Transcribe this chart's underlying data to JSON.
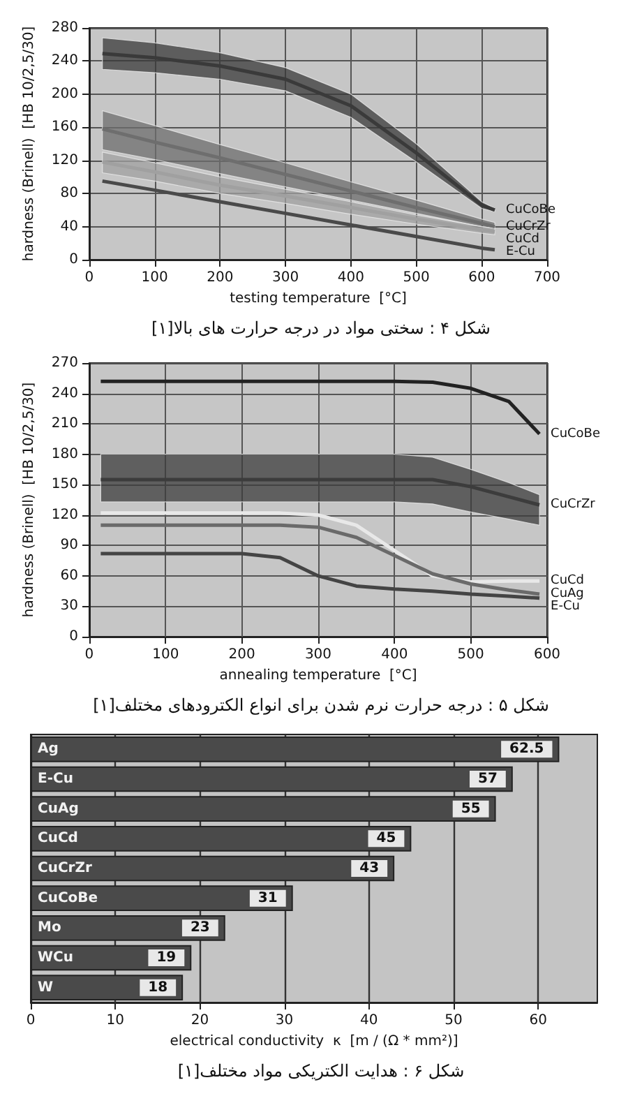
{
  "chart_data": [
    {
      "type": "line",
      "title": "شکل ۴ : سختی مواد در درجه حرارت های بالا[۱]",
      "xlabel": "testing temperature  [°C]",
      "ylabel": "hardness (Brinell)  [HB 10/2,5/30]",
      "xlim": [
        0,
        700
      ],
      "xticks": [
        0,
        100,
        200,
        300,
        400,
        500,
        600,
        700
      ],
      "ylim": [
        0,
        280
      ],
      "yticks": [
        0,
        40,
        80,
        120,
        160,
        200,
        240,
        280
      ],
      "grid": true,
      "x": [
        20,
        100,
        200,
        300,
        400,
        500,
        600,
        620
      ],
      "series": [
        {
          "name": "CuCoBe",
          "color": "#3a3a3a",
          "values": [
            249,
            244,
            234,
            218,
            186,
            129,
            66,
            60
          ],
          "lower": [
            230,
            226,
            218,
            204,
            172,
            118,
            62,
            58
          ],
          "upper": [
            268,
            262,
            250,
            232,
            200,
            140,
            70,
            62
          ]
        },
        {
          "name": "CuCrZr",
          "color": "#6e6e6e",
          "values": [
            158,
            142,
            123,
            103,
            83,
            63,
            44,
            40
          ],
          "lower": [
            133,
            121,
            104,
            88,
            72,
            56,
            40,
            38
          ],
          "upper": [
            180,
            162,
            139,
            117,
            94,
            72,
            49,
            45
          ]
        },
        {
          "name": "CuCd",
          "color": "#a0a0a0",
          "values": [
            118,
            106,
            90,
            77,
            63,
            49,
            36,
            34
          ],
          "lower": [
            105,
            95,
            80,
            68,
            55,
            43,
            32,
            30
          ],
          "upper": [
            130,
            117,
            100,
            85,
            70,
            54,
            40,
            38
          ]
        },
        {
          "name": "E-Cu",
          "color": "#4a4a4a",
          "values": [
            95,
            84,
            70,
            56,
            42,
            28,
            14,
            12
          ]
        }
      ]
    },
    {
      "type": "line",
      "title": "شکل ۵ : درجه حرارت نرم شدن برای انواع الکترودهای مختلف[۱]",
      "xlabel": "annealing temperature  [°C]",
      "ylabel": "hardness (Brinell)  [HB 10/2,5/30]",
      "xlim": [
        0,
        600
      ],
      "xticks": [
        0,
        100,
        200,
        300,
        400,
        500,
        600
      ],
      "ylim": [
        0,
        270
      ],
      "yticks": [
        0,
        30,
        60,
        90,
        120,
        150,
        180,
        210,
        240,
        270
      ],
      "grid": true,
      "x": [
        15,
        100,
        200,
        250,
        300,
        350,
        400,
        450,
        500,
        550,
        590
      ],
      "series": [
        {
          "name": "CuCoBe",
          "color": "#222222",
          "values": [
            252,
            252,
            252,
            252,
            252,
            252,
            252,
            251,
            245,
            232,
            200
          ]
        },
        {
          "name": "CuCrZr",
          "color": "#3c3c3c",
          "values": [
            155,
            155,
            155,
            155,
            155,
            155,
            155,
            155,
            148,
            138,
            130
          ],
          "lower": [
            133,
            133,
            133,
            133,
            133,
            133,
            133,
            131,
            123,
            116,
            110
          ],
          "upper": [
            180,
            180,
            180,
            180,
            180,
            180,
            180,
            177,
            165,
            152,
            140
          ]
        },
        {
          "name": "CuCd",
          "color": "#e8e8e8",
          "values": [
            122,
            122,
            122,
            122,
            120,
            110,
            85,
            60,
            54,
            55,
            55
          ]
        },
        {
          "name": "CuAg",
          "color": "#6a6a6a",
          "values": [
            110,
            110,
            110,
            110,
            108,
            98,
            80,
            62,
            52,
            46,
            42
          ]
        },
        {
          "name": "E-Cu",
          "color": "#444444",
          "values": [
            82,
            82,
            82,
            78,
            60,
            50,
            47,
            45,
            42,
            40,
            38
          ]
        }
      ]
    },
    {
      "type": "bar",
      "orientation": "horizontal",
      "title": "شکل ۶ : هدایت الکتریکی مواد مختلف[۱]",
      "xlabel": "electrical conductivity  κ  [m / (Ω * mm²)]",
      "categories": [
        "Ag",
        "E-Cu",
        "CuAg",
        "CuCd",
        "CuCrZr",
        "CuCoBe",
        "Mo",
        "WCu",
        "W"
      ],
      "values": [
        62.5,
        57,
        55,
        45,
        43,
        31,
        23,
        19,
        18
      ],
      "color": "#4a4a4a",
      "data_labels": true,
      "xlim": [
        0,
        67
      ],
      "xticks": [
        0,
        10,
        20,
        30,
        40,
        50,
        60
      ],
      "grid": "x"
    }
  ]
}
